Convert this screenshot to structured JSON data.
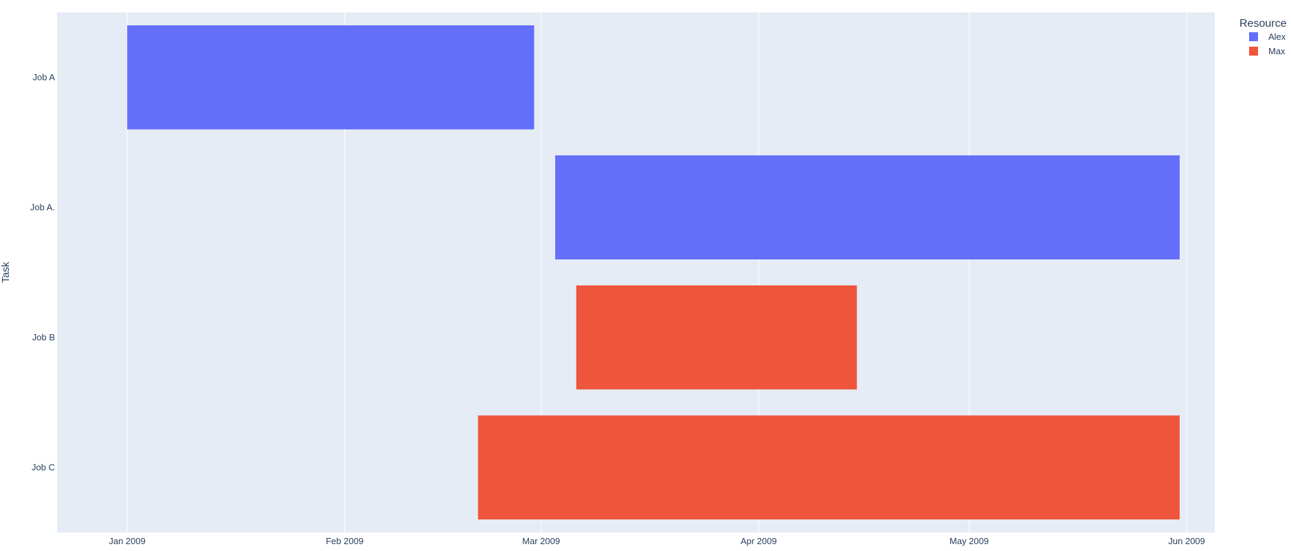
{
  "chart_data": {
    "type": "gantt",
    "title": "",
    "xlabel": "",
    "ylabel": "Task",
    "x_axis_type": "date",
    "xlim": [
      "2008-12-22",
      "2009-06-05"
    ],
    "x_ticks": [
      {
        "date": "2009-01-01",
        "label": "Jan 2009"
      },
      {
        "date": "2009-02-01",
        "label": "Feb 2009"
      },
      {
        "date": "2009-03-01",
        "label": "Mar 2009"
      },
      {
        "date": "2009-04-01",
        "label": "Apr 2009"
      },
      {
        "date": "2009-05-01",
        "label": "May 2009"
      },
      {
        "date": "2009-06-01",
        "label": "Jun 2009"
      }
    ],
    "categories": [
      "Job A",
      "Job A.",
      "Job B",
      "Job C"
    ],
    "grid": true,
    "background_color": "#e5ecf6",
    "legend": {
      "title": "Resource",
      "placement": "top-right",
      "items": [
        {
          "name": "Alex",
          "color": "#636efa"
        },
        {
          "name": "Max",
          "color": "#ef553b"
        }
      ]
    },
    "tasks": [
      {
        "task": "Job A",
        "start": "2009-01-01",
        "finish": "2009-02-28",
        "resource": "Alex"
      },
      {
        "task": "Job A.",
        "start": "2009-03-03",
        "finish": "2009-05-31",
        "resource": "Alex"
      },
      {
        "task": "Job B",
        "start": "2009-03-06",
        "finish": "2009-04-15",
        "resource": "Max"
      },
      {
        "task": "Job C",
        "start": "2009-02-20",
        "finish": "2009-05-31",
        "resource": "Max"
      }
    ]
  }
}
